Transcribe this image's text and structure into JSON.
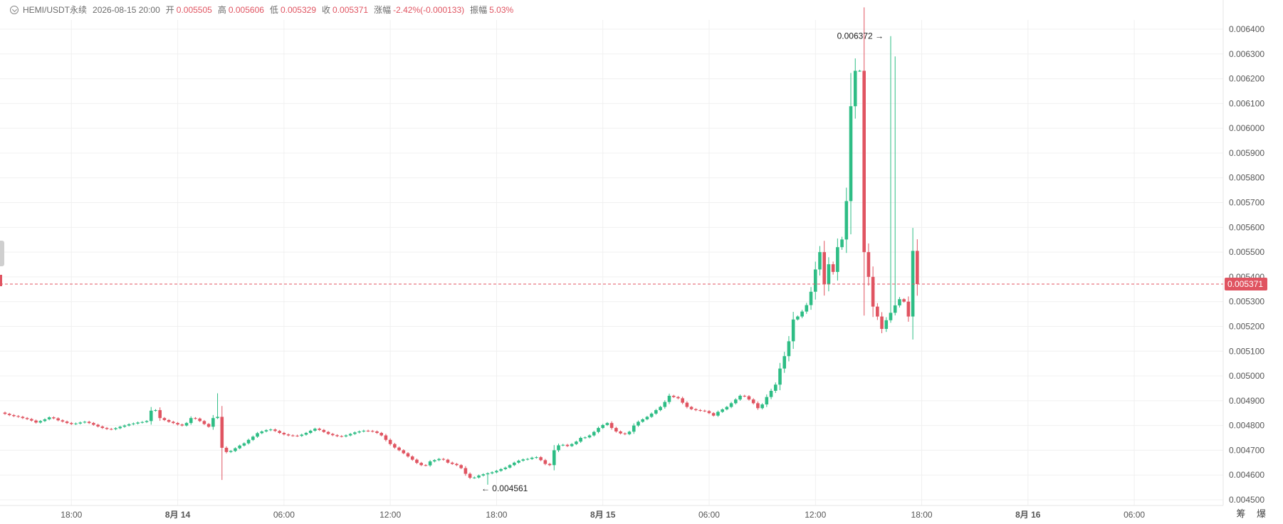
{
  "header": {
    "symbol": "HEMI/USDT永续",
    "datetime": "2026-08-15 20:00",
    "open_label": "开",
    "open": "0.005505",
    "high_label": "高",
    "high": "0.005606",
    "low_label": "低",
    "low": "0.005329",
    "close_label": "收",
    "close": "0.005371",
    "change_label": "涨幅",
    "change": "-2.42%(-0.000133)",
    "amp_label": "振幅",
    "amp": "5.03%"
  },
  "corner_text": "筹 爆",
  "colors": {
    "up": "#2ebd85",
    "down": "#e05461",
    "grid": "#f0f0f0",
    "axis_text": "#555555"
  },
  "chart_data": {
    "type": "candlestick",
    "ylim": [
      0.00445,
      0.00645
    ],
    "y_ticks": [
      "0.004500",
      "0.004600",
      "0.004700",
      "0.004800",
      "0.004900",
      "0.005000",
      "0.005100",
      "0.005200",
      "0.005300",
      "0.005400",
      "0.005500",
      "0.005600",
      "0.005700",
      "0.005800",
      "0.005900",
      "0.006000",
      "0.006100",
      "0.006200",
      "0.006300",
      "0.006400"
    ],
    "x_ticks": [
      {
        "label": "18:00",
        "index": 15
      },
      {
        "label": "8月 14",
        "index": 39
      },
      {
        "label": "06:00",
        "index": 63
      },
      {
        "label": "12:00",
        "index": 87
      },
      {
        "label": "18:00",
        "index": 111
      },
      {
        "label": "8月 15",
        "index": 135
      },
      {
        "label": "06:00",
        "index": 159
      },
      {
        "label": "12:00",
        "index": 183
      },
      {
        "label": "18:00",
        "index": 207
      },
      {
        "label": "8月 16",
        "index": 231
      },
      {
        "label": "06:00",
        "index": 255
      }
    ],
    "candle_interval": "15m",
    "last_price": "0.005371",
    "last_price_value": 0.005371,
    "max_marker": {
      "label": "0.006372",
      "index": 200,
      "value": 0.006372
    },
    "min_marker": {
      "label": "0.004561",
      "index": 109,
      "value": 0.004561
    },
    "close_series": [
      0.004847,
      0.004842,
      0.004838,
      0.004835,
      0.00483,
      0.004826,
      0.00482,
      0.004812,
      0.004818,
      0.004825,
      0.004833,
      0.004829,
      0.004821,
      0.004816,
      0.00481,
      0.004806,
      0.004808,
      0.004812,
      0.004815,
      0.00481,
      0.004803,
      0.004796,
      0.00479,
      0.004786,
      0.004785,
      0.004789,
      0.004795,
      0.0048,
      0.004805,
      0.004808,
      0.004812,
      0.004814,
      0.004818,
      0.00486,
      0.004862,
      0.00483,
      0.004822,
      0.004815,
      0.00481,
      0.004804,
      0.0048,
      0.00481,
      0.00483,
      0.004828,
      0.004818,
      0.004806,
      0.004795,
      0.00483,
      0.004835,
      0.00471,
      0.004693,
      0.004697,
      0.004708,
      0.004719,
      0.004728,
      0.004742,
      0.004755,
      0.004769,
      0.004776,
      0.004781,
      0.004784,
      0.004778,
      0.00477,
      0.004764,
      0.00476,
      0.004759,
      0.004758,
      0.004763,
      0.00477,
      0.004779,
      0.004787,
      0.004782,
      0.004774,
      0.004766,
      0.004761,
      0.004757,
      0.004756,
      0.00476,
      0.004766,
      0.004772,
      0.004776,
      0.004779,
      0.004778,
      0.004776,
      0.00477,
      0.00476,
      0.004742,
      0.004725,
      0.004711,
      0.0047,
      0.004688,
      0.004675,
      0.004662,
      0.004649,
      0.00464,
      0.004639,
      0.004655,
      0.00466,
      0.004665,
      0.004662,
      0.00465,
      0.004645,
      0.00464,
      0.004628,
      0.004605,
      0.004589,
      0.00459,
      0.004598,
      0.004603,
      0.004607,
      0.004611,
      0.004617,
      0.004624,
      0.00463,
      0.00464,
      0.00465,
      0.004658,
      0.004663,
      0.004665,
      0.00467,
      0.004672,
      0.00466,
      0.004645,
      0.00464,
      0.0047,
      0.00472,
      0.004722,
      0.004717,
      0.004725,
      0.004735,
      0.00475,
      0.004752,
      0.00476,
      0.004774,
      0.00479,
      0.004802,
      0.00481,
      0.00479,
      0.004776,
      0.004768,
      0.004765,
      0.004775,
      0.0048,
      0.004815,
      0.004825,
      0.004835,
      0.004848,
      0.004862,
      0.004875,
      0.004895,
      0.00492,
      0.004915,
      0.00491,
      0.004892,
      0.004875,
      0.004866,
      0.004862,
      0.00486,
      0.004858,
      0.00485,
      0.00484,
      0.004855,
      0.004865,
      0.004875,
      0.00489,
      0.004905,
      0.00492,
      0.004918,
      0.004905,
      0.00489,
      0.00487,
      0.004885,
      0.004915,
      0.00494,
      0.004965,
      0.00503,
      0.00508,
      0.00514,
      0.005228,
      0.00524,
      0.00526,
      0.005286,
      0.00534,
      0.00543,
      0.0055,
      0.00537,
      0.005451,
      0.00542,
      0.00552,
      0.005551,
      0.005706,
      0.006089,
      0.006232,
      0.006232,
      0.0055,
      0.0054,
      0.00528,
      0.00524,
      0.00519,
      0.005225,
      0.005255,
      0.005285,
      0.00531,
      0.0053,
      0.00524,
      0.005505,
      0.005371
    ]
  }
}
